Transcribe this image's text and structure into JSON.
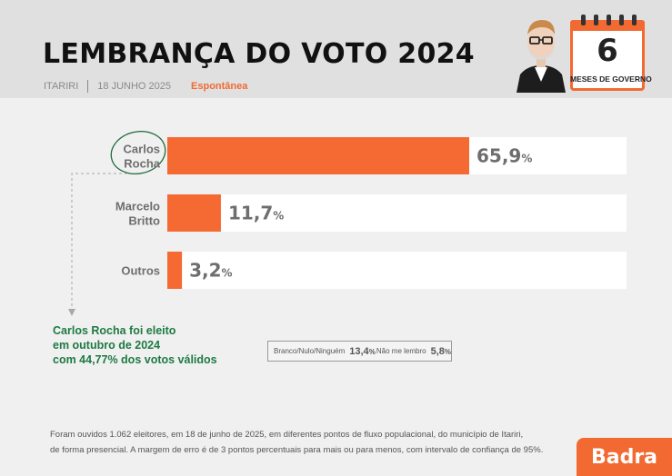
{
  "header": {
    "title": "LEMBRANÇA DO VOTO 2024",
    "city": "ITARIRI",
    "date": "18 JUNHO 2025",
    "mode": "Espontânea",
    "calendar_number": "6",
    "calendar_label": "MESES DE GOVERNO"
  },
  "chart_data": {
    "type": "bar",
    "orientation": "horizontal",
    "categories": [
      "Carlos Rocha",
      "Marcelo Britto",
      "Outros"
    ],
    "category_lines": [
      [
        "Carlos",
        "Rocha"
      ],
      [
        "Marcelo",
        "Britto"
      ],
      [
        "Outros"
      ]
    ],
    "values": [
      65.9,
      11.7,
      3.2
    ],
    "value_labels": [
      "65,9",
      "11,7",
      "3,2"
    ],
    "unit": "%",
    "xlim": [
      0,
      100
    ],
    "highlight": "Carlos Rocha",
    "grid": false,
    "bar_color": "#f56a33",
    "track_color": "#ffffff"
  },
  "note": {
    "lines": [
      "Carlos Rocha foi eleito",
      "em outubro de 2024",
      "com 44,77% dos votos válidos"
    ]
  },
  "others": {
    "blank_label": "Branco/Nulo/Ninguém",
    "blank_value": "13,4",
    "dont_remember_label": "Não me lembro",
    "dont_remember_value": "5,8",
    "unit": "%"
  },
  "footnote": {
    "line1": "Foram ouvidos 1.062 eleitores, em 18 de junho de 2025, em diferentes pontos de fluxo populacional, do município de Itariri,",
    "line2": "de forma presencial. A margem de erro é de 3 pontos percentuais para mais ou para menos, com intervalo de confiança de 95%."
  },
  "brand": {
    "name": "Badra"
  },
  "colors": {
    "accent": "#f26a32",
    "note_green": "#1e7a43",
    "highlight_circle": "#1e6b3c"
  }
}
